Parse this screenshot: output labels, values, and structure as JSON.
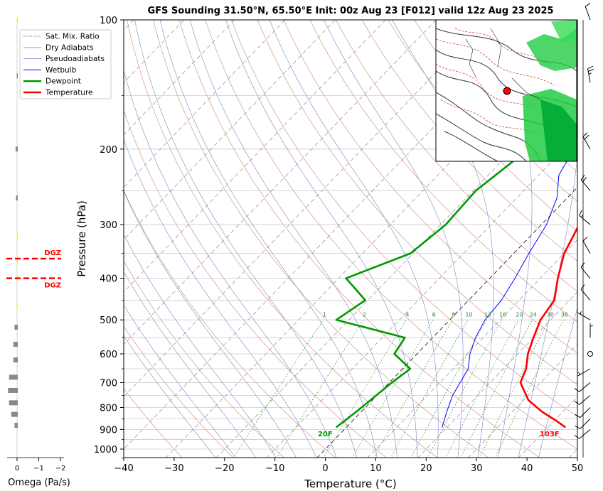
{
  "chart_data": {
    "type": "line",
    "title": "GFS Sounding 31.50°N, 65.50°E Init: 00z Aug 23 [F012] valid 12z Aug 23 2025",
    "xlabel": "Temperature (°C)",
    "ylabel": "Pressure (hPa)",
    "xlim": [
      -40,
      50
    ],
    "ylim": [
      1050,
      100
    ],
    "y_scale": "log",
    "grid": true,
    "x_ticks": [
      "−40",
      "−30",
      "−20",
      "−10",
      "0",
      "10",
      "20",
      "30",
      "40",
      "50"
    ],
    "y_ticks": [
      "100",
      "200",
      "300",
      "400",
      "500",
      "600",
      "700",
      "800",
      "900",
      "1000"
    ],
    "legend_position": "top-left",
    "legend": [
      {
        "label": "Sat. Mix. Ratio",
        "color": "#2e8b2e",
        "style": "dotted"
      },
      {
        "label": "Dry Adiabats",
        "color": "#d08080",
        "style": "solid"
      },
      {
        "label": "Pseudoadiabats",
        "color": "#8080d0",
        "style": "solid"
      },
      {
        "label": "Wetbulb",
        "color": "#0000ff",
        "style": "solid"
      },
      {
        "label": "Dewpoint",
        "color": "#009900",
        "style": "solid"
      },
      {
        "label": "Temperature",
        "color": "#ff0000",
        "style": "solid"
      }
    ],
    "series": [
      {
        "name": "Temperature",
        "color": "#ff0000",
        "points": [
          [
            43.5,
            890
          ],
          [
            40.5,
            860
          ],
          [
            36,
            820
          ],
          [
            31,
            770
          ],
          [
            26,
            700
          ],
          [
            24.5,
            650
          ],
          [
            22,
            600
          ],
          [
            20,
            550
          ],
          [
            18,
            500
          ],
          [
            17,
            450
          ],
          [
            13.5,
            400
          ],
          [
            10,
            350
          ],
          [
            7.5,
            300
          ],
          [
            5,
            270
          ],
          [
            1,
            230
          ],
          [
            -2,
            200
          ],
          [
            -7,
            165
          ],
          [
            -8.5,
            150
          ],
          [
            -11,
            130
          ],
          [
            -13.5,
            115
          ],
          [
            -14.5,
            100
          ]
        ]
      },
      {
        "name": "Dewpoint",
        "color": "#009900",
        "points": [
          [
            -2,
            890
          ],
          [
            -1,
            820
          ],
          [
            0.5,
            700
          ],
          [
            1.5,
            650
          ],
          [
            -4.5,
            600
          ],
          [
            -5.5,
            550
          ],
          [
            -22.5,
            500
          ],
          [
            -20.5,
            450
          ],
          [
            -28.5,
            400
          ],
          [
            -20.5,
            350
          ],
          [
            -19,
            300
          ],
          [
            -19.5,
            250
          ],
          [
            -17,
            200
          ],
          [
            -17.5,
            170
          ],
          [
            -19,
            150
          ],
          [
            -18,
            130
          ],
          [
            -16.5,
            100
          ]
        ]
      },
      {
        "name": "Wetbulb",
        "color": "#0000ff",
        "points": [
          [
            19,
            890
          ],
          [
            17,
            820
          ],
          [
            15,
            750
          ],
          [
            13,
            650
          ],
          [
            10.5,
            600
          ],
          [
            8.5,
            550
          ],
          [
            7,
            500
          ],
          [
            6.5,
            450
          ],
          [
            5,
            400
          ],
          [
            3,
            350
          ],
          [
            1,
            300
          ],
          [
            -2,
            260
          ],
          [
            -6,
            230
          ],
          [
            -8,
            200
          ],
          [
            -10,
            170
          ],
          [
            -12,
            150
          ],
          [
            -14,
            130
          ]
        ]
      }
    ],
    "annotations": [
      {
        "text": "20F",
        "color": "#009900",
        "x": -3,
        "p": 920
      },
      {
        "text": "103F",
        "color": "#ff0000",
        "x": 41.5,
        "p": 920
      }
    ],
    "mixing_ratio_labels": [
      "1",
      "2",
      "4",
      "6",
      "8",
      "10",
      "13",
      "16",
      "20",
      "24",
      "30",
      "36"
    ],
    "omega_panel": {
      "xlabel": "Omega (Pa/s)",
      "x_ticks": [
        "0",
        "−1",
        "−2"
      ],
      "dgz_label": "DGZ",
      "dgz_pressures": [
        360,
        400
      ],
      "bars": [
        {
          "p": 100,
          "value": 0.05,
          "color": "#ffee00"
        },
        {
          "p": 135,
          "value": -0.03,
          "color": "#888888"
        },
        {
          "p": 200,
          "value": -0.1,
          "color": "#888888"
        },
        {
          "p": 260,
          "value": -0.08,
          "color": "#888888"
        },
        {
          "p": 320,
          "value": 0.05,
          "color": "#ffee00"
        },
        {
          "p": 365,
          "value": 0.05,
          "color": "#ffee00"
        },
        {
          "p": 400,
          "value": 0.05,
          "color": "#ffee00"
        },
        {
          "p": 460,
          "value": 0.05,
          "color": "#ffee00"
        },
        {
          "p": 520,
          "value": -0.15,
          "color": "#888888"
        },
        {
          "p": 570,
          "value": -0.2,
          "color": "#888888"
        },
        {
          "p": 620,
          "value": -0.2,
          "color": "#888888"
        },
        {
          "p": 680,
          "value": -0.4,
          "color": "#888888"
        },
        {
          "p": 730,
          "value": -0.45,
          "color": "#888888"
        },
        {
          "p": 780,
          "value": -0.4,
          "color": "#888888"
        },
        {
          "p": 830,
          "value": -0.3,
          "color": "#888888"
        },
        {
          "p": 880,
          "value": -0.15,
          "color": "#888888"
        }
      ]
    },
    "wind_barbs": [
      {
        "p": 100,
        "dir": 340,
        "kt": 10
      },
      {
        "p": 140,
        "dir": 350,
        "kt": 25
      },
      {
        "p": 200,
        "dir": 330,
        "kt": 20
      },
      {
        "p": 250,
        "dir": 320,
        "kt": 20
      },
      {
        "p": 300,
        "dir": 310,
        "kt": 15
      },
      {
        "p": 350,
        "dir": 330,
        "kt": 10
      },
      {
        "p": 400,
        "dir": 320,
        "kt": 10
      },
      {
        "p": 450,
        "dir": 320,
        "kt": 10
      },
      {
        "p": 500,
        "dir": 300,
        "kt": 5
      },
      {
        "p": 550,
        "dir": 0,
        "kt": 5
      },
      {
        "p": 600,
        "dir": 0,
        "kt": 0
      },
      {
        "p": 650,
        "dir": 240,
        "kt": 5
      },
      {
        "p": 700,
        "dir": 230,
        "kt": 10
      },
      {
        "p": 750,
        "dir": 230,
        "kt": 10
      },
      {
        "p": 800,
        "dir": 225,
        "kt": 10
      },
      {
        "p": 850,
        "dir": 225,
        "kt": 10
      },
      {
        "p": 900,
        "dir": 230,
        "kt": 10
      }
    ],
    "inset_map": {
      "marker_color": "#ff0000"
    }
  }
}
